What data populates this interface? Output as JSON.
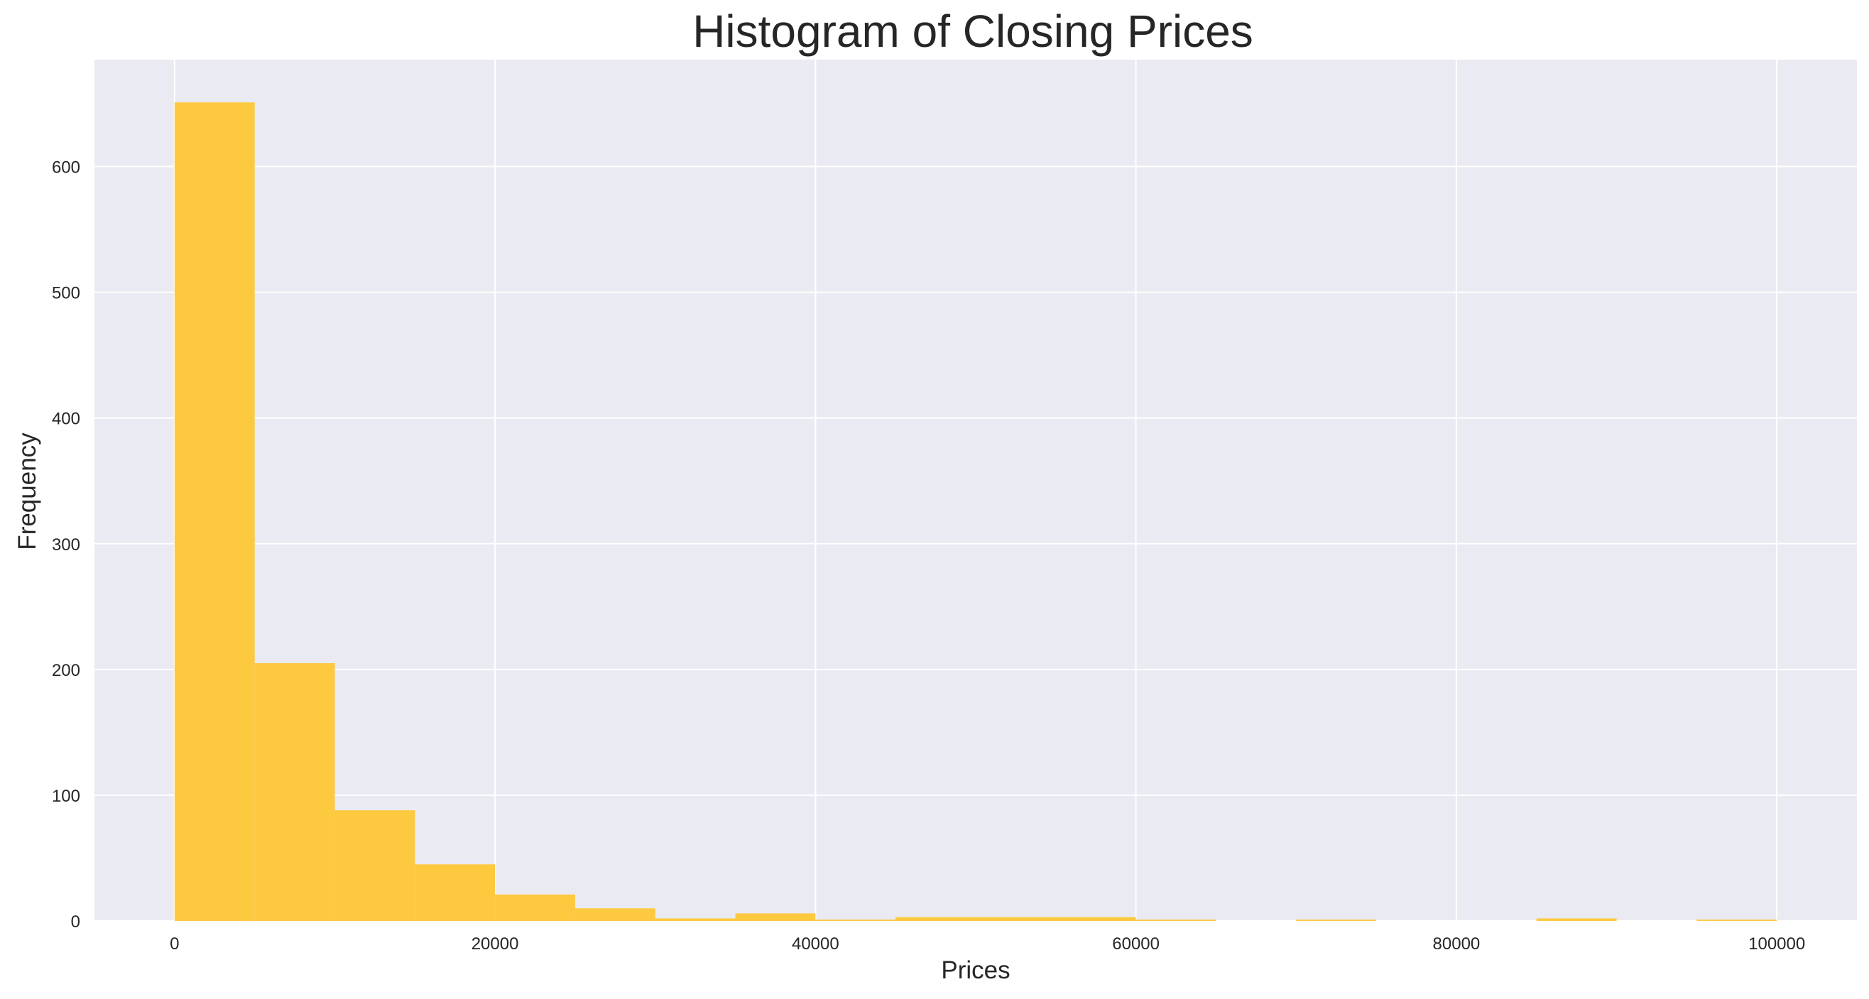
{
  "chart_data": {
    "type": "bar",
    "title": "Histogram of Closing Prices",
    "xlabel": "Prices",
    "ylabel": "Frequency",
    "xlim": [
      -5000,
      105000
    ],
    "ylim": [
      0,
      685
    ],
    "x_ticks": [
      0,
      20000,
      40000,
      60000,
      80000,
      100000
    ],
    "x_tick_labels": [
      "0",
      "20000",
      "40000",
      "60000",
      "80000",
      "100000"
    ],
    "y_ticks": [
      0,
      100,
      200,
      300,
      400,
      500,
      600
    ],
    "y_tick_labels": [
      "0",
      "100",
      "200",
      "300",
      "400",
      "500",
      "600"
    ],
    "grid": true,
    "colors": {
      "bar": "#FDC93F",
      "plot_bg": "#EAEAF2",
      "grid": "#FFFFFF"
    },
    "bins": [
      {
        "start": 0,
        "end": 5000,
        "count": 651
      },
      {
        "start": 5000,
        "end": 10000,
        "count": 205
      },
      {
        "start": 10000,
        "end": 15000,
        "count": 88
      },
      {
        "start": 15000,
        "end": 20000,
        "count": 45
      },
      {
        "start": 20000,
        "end": 25000,
        "count": 21
      },
      {
        "start": 25000,
        "end": 30000,
        "count": 10
      },
      {
        "start": 30000,
        "end": 35000,
        "count": 2
      },
      {
        "start": 35000,
        "end": 40000,
        "count": 6
      },
      {
        "start": 40000,
        "end": 45000,
        "count": 1
      },
      {
        "start": 45000,
        "end": 50000,
        "count": 3
      },
      {
        "start": 50000,
        "end": 55000,
        "count": 3
      },
      {
        "start": 55000,
        "end": 60000,
        "count": 3
      },
      {
        "start": 60000,
        "end": 65000,
        "count": 1
      },
      {
        "start": 65000,
        "end": 70000,
        "count": 0
      },
      {
        "start": 70000,
        "end": 75000,
        "count": 1
      },
      {
        "start": 75000,
        "end": 80000,
        "count": 0
      },
      {
        "start": 80000,
        "end": 85000,
        "count": 0
      },
      {
        "start": 85000,
        "end": 90000,
        "count": 2
      },
      {
        "start": 90000,
        "end": 95000,
        "count": 0
      },
      {
        "start": 95000,
        "end": 100000,
        "count": 1
      }
    ]
  }
}
